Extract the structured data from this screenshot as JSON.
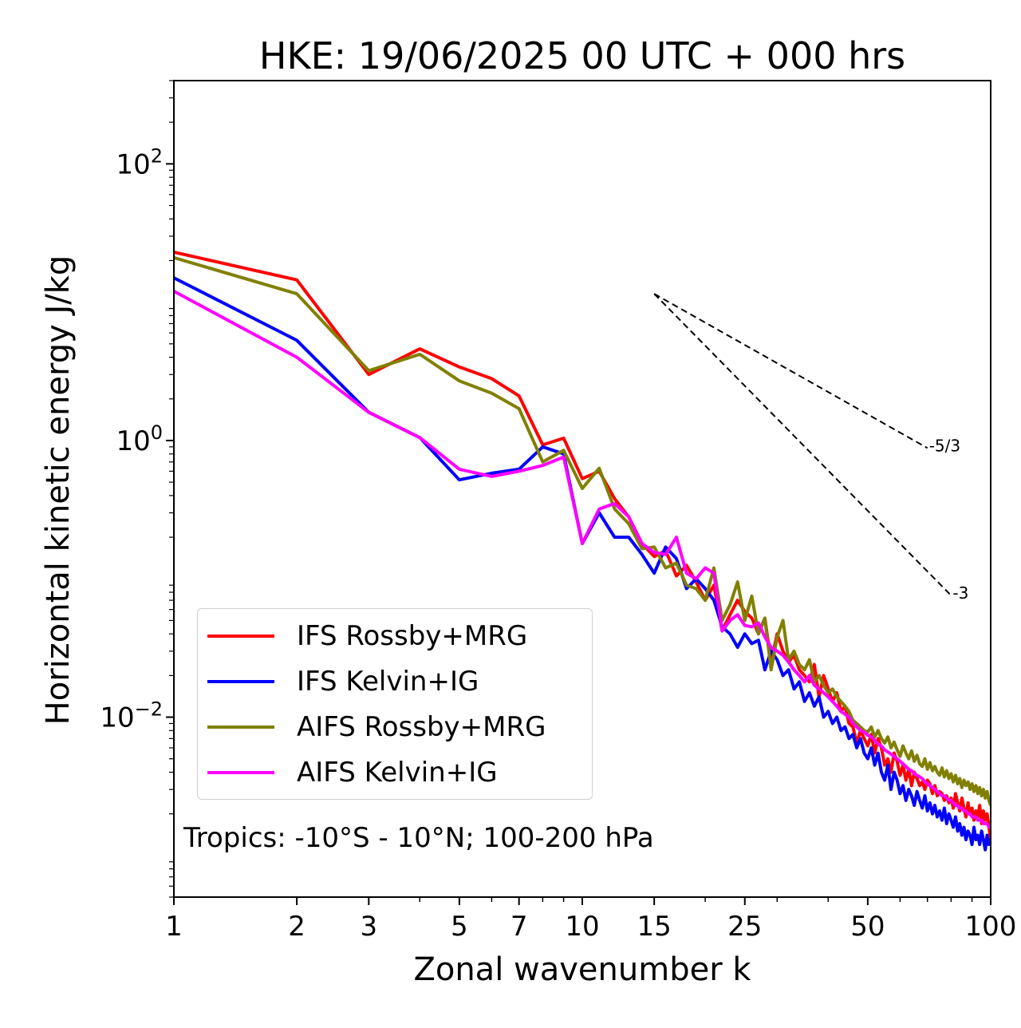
{
  "chart_data": {
    "type": "line",
    "title": "HKE: 19/06/2025 00 UTC + 000 hrs",
    "xlabel": "Zonal wavenumber k",
    "ylabel": "Horizontal kinetic energy J/kg",
    "x_scale": "log",
    "y_scale": "log",
    "xlim": [
      1,
      100
    ],
    "ylim": [
      0.0005,
      400
    ],
    "xticks": [
      {
        "value": 1,
        "label": "1"
      },
      {
        "value": 2,
        "label": "2"
      },
      {
        "value": 3,
        "label": "3"
      },
      {
        "value": 5,
        "label": "5"
      },
      {
        "value": 7,
        "label": "7"
      },
      {
        "value": 10,
        "label": "10"
      },
      {
        "value": 15,
        "label": "15"
      },
      {
        "value": 25,
        "label": "25"
      },
      {
        "value": 50,
        "label": "50"
      },
      {
        "value": 100,
        "label": "100"
      }
    ],
    "yticks": [
      {
        "value": 0.01,
        "base": "10",
        "exp": "−2"
      },
      {
        "value": 1,
        "base": "10",
        "exp": "0"
      },
      {
        "value": 100,
        "base": "10",
        "exp": "2"
      }
    ],
    "grid": false,
    "legend_position": "lower-left",
    "annotation": "Tropics: -10°S - 10°N; 100-200 hPa",
    "reference_lines": [
      {
        "label": "-5/3",
        "slope": -1.6667,
        "x": [
          15,
          70
        ],
        "y0": 11.5,
        "style": "dashed"
      },
      {
        "label": "-3",
        "slope": -3,
        "x": [
          15,
          80
        ],
        "y0": 11.5,
        "style": "dashed"
      }
    ],
    "x": [
      1,
      2,
      3,
      4,
      5,
      6,
      7,
      8,
      9,
      10,
      11,
      12,
      13,
      14,
      15,
      16,
      17,
      18,
      19,
      20,
      21,
      22,
      23,
      24,
      25,
      26,
      27,
      28,
      29,
      30,
      31,
      32,
      33,
      34,
      35,
      36,
      37,
      38,
      39,
      40,
      41,
      42,
      43,
      44,
      45,
      46,
      47,
      48,
      49,
      50,
      51,
      52,
      53,
      54,
      55,
      56,
      57,
      58,
      59,
      60,
      61,
      62,
      63,
      64,
      65,
      66,
      67,
      68,
      69,
      70,
      71,
      72,
      73,
      74,
      75,
      76,
      77,
      78,
      79,
      80,
      81,
      82,
      83,
      84,
      85,
      86,
      87,
      88,
      89,
      90,
      91,
      92,
      93,
      94,
      95,
      96,
      97,
      98,
      99,
      100
    ],
    "series": [
      {
        "name": "IFS Rossby+MRG",
        "color": "#ff0000",
        "values": [
          23,
          14.5,
          3.0,
          4.6,
          3.4,
          2.8,
          2.1,
          0.93,
          1.04,
          0.53,
          0.6,
          0.38,
          0.28,
          0.18,
          0.145,
          0.16,
          0.105,
          0.125,
          0.095,
          0.07,
          0.09,
          0.042,
          0.055,
          0.07,
          0.058,
          0.052,
          0.04,
          0.052,
          0.025,
          0.04,
          0.03,
          0.025,
          0.028,
          0.022,
          0.02,
          0.018,
          0.024,
          0.014,
          0.02,
          0.016,
          0.013,
          0.015,
          0.011,
          0.012,
          0.009,
          0.0085,
          0.0065,
          0.008,
          0.007,
          0.0062,
          0.0075,
          0.0055,
          0.007,
          0.006,
          0.0045,
          0.005,
          0.004,
          0.0055,
          0.0048,
          0.0038,
          0.0045,
          0.0035,
          0.0042,
          0.0032,
          0.004,
          0.0036,
          0.0032,
          0.0034,
          0.003,
          0.0035,
          0.0033,
          0.0028,
          0.0032,
          0.0027,
          0.0029,
          0.0028,
          0.0025,
          0.0027,
          0.0024,
          0.0026,
          0.0022,
          0.0028,
          0.0024,
          0.0021,
          0.0026,
          0.0022,
          0.0019,
          0.0024,
          0.002,
          0.0022,
          0.0018,
          0.0021,
          0.0019,
          0.0023,
          0.0017,
          0.0021,
          0.0018,
          0.002,
          0.0016,
          0.0013
        ]
      },
      {
        "name": "IFS Kelvin+IG",
        "color": "#0000ff",
        "values": [
          15,
          5.3,
          1.6,
          1.05,
          0.52,
          0.58,
          0.62,
          0.9,
          0.8,
          0.18,
          0.3,
          0.2,
          0.2,
          0.15,
          0.11,
          0.17,
          0.14,
          0.085,
          0.1,
          0.085,
          0.07,
          0.045,
          0.04,
          0.032,
          0.04,
          0.034,
          0.036,
          0.022,
          0.03,
          0.026,
          0.02,
          0.022,
          0.016,
          0.018,
          0.013,
          0.015,
          0.012,
          0.014,
          0.01,
          0.011,
          0.009,
          0.01,
          0.008,
          0.0085,
          0.007,
          0.0075,
          0.006,
          0.007,
          0.0055,
          0.005,
          0.006,
          0.0045,
          0.0055,
          0.004,
          0.0035,
          0.0045,
          0.003,
          0.004,
          0.0035,
          0.0028,
          0.0032,
          0.0025,
          0.003,
          0.0027,
          0.0023,
          0.0029,
          0.0025,
          0.0022,
          0.0027,
          0.0021,
          0.0024,
          0.002,
          0.0023,
          0.0019,
          0.0021,
          0.0018,
          0.0022,
          0.0017,
          0.002,
          0.0018,
          0.0016,
          0.0019,
          0.0015,
          0.0017,
          0.0014,
          0.0016,
          0.0013,
          0.0015,
          0.0014,
          0.0012,
          0.0016,
          0.0013,
          0.0014,
          0.0012,
          0.0015,
          0.0013,
          0.0011,
          0.0014,
          0.0012,
          0.0013
        ]
      },
      {
        "name": "AIFS Rossby+MRG",
        "color": "#808000",
        "values": [
          21,
          11.5,
          3.2,
          4.2,
          2.7,
          2.2,
          1.7,
          0.7,
          0.85,
          0.45,
          0.63,
          0.32,
          0.25,
          0.165,
          0.17,
          0.12,
          0.13,
          0.09,
          0.085,
          0.07,
          0.12,
          0.05,
          0.065,
          0.095,
          0.05,
          0.075,
          0.04,
          0.052,
          0.022,
          0.038,
          0.05,
          0.026,
          0.03,
          0.024,
          0.022,
          0.026,
          0.018,
          0.02,
          0.017,
          0.015,
          0.016,
          0.014,
          0.013,
          0.012,
          0.011,
          0.0095,
          0.009,
          0.0085,
          0.008,
          0.0078,
          0.0085,
          0.0072,
          0.008,
          0.007,
          0.0065,
          0.0072,
          0.006,
          0.0066,
          0.0058,
          0.0052,
          0.0062,
          0.0055,
          0.005,
          0.0057,
          0.0048,
          0.0053,
          0.0046,
          0.0044,
          0.005,
          0.0042,
          0.0047,
          0.0041,
          0.0044,
          0.004,
          0.0038,
          0.0043,
          0.0037,
          0.0041,
          0.0036,
          0.0039,
          0.0034,
          0.0038,
          0.0033,
          0.0036,
          0.0031,
          0.0035,
          0.0032,
          0.0034,
          0.003,
          0.0033,
          0.0029,
          0.0032,
          0.0028,
          0.0031,
          0.0027,
          0.003,
          0.0026,
          0.0029,
          0.0025,
          0.0023
        ]
      },
      {
        "name": "AIFS Kelvin+IG",
        "color": "#ff00ff",
        "values": [
          12,
          4,
          1.6,
          1.05,
          0.62,
          0.55,
          0.6,
          0.66,
          0.76,
          0.18,
          0.32,
          0.35,
          0.28,
          0.18,
          0.155,
          0.15,
          0.2,
          0.11,
          0.1,
          0.12,
          0.11,
          0.042,
          0.05,
          0.055,
          0.046,
          0.045,
          0.048,
          0.038,
          0.032,
          0.03,
          0.028,
          0.025,
          0.022,
          0.02,
          0.018,
          0.02,
          0.017,
          0.016,
          0.015,
          0.014,
          0.013,
          0.012,
          0.011,
          0.0105,
          0.01,
          0.009,
          0.0085,
          0.008,
          0.0078,
          0.0074,
          0.0072,
          0.0068,
          0.0064,
          0.0062,
          0.0058,
          0.0056,
          0.0054,
          0.0052,
          0.005,
          0.0048,
          0.0046,
          0.0044,
          0.0042,
          0.0041,
          0.0039,
          0.0038,
          0.0037,
          0.0036,
          0.0034,
          0.0033,
          0.0032,
          0.0031,
          0.003,
          0.0029,
          0.0028,
          0.0027,
          0.0027,
          0.0026,
          0.0025,
          0.0025,
          0.0024,
          0.0023,
          0.0023,
          0.0022,
          0.0022,
          0.0021,
          0.0021,
          0.002,
          0.002,
          0.0019,
          0.0019,
          0.0019,
          0.0018,
          0.0018,
          0.0018,
          0.0017,
          0.0017,
          0.0017,
          0.0016,
          0.0016
        ]
      }
    ]
  }
}
